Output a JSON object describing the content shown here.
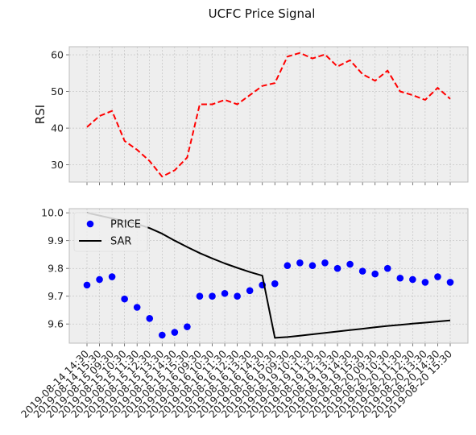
{
  "chart_data": {
    "title": "UCFC Price Signal",
    "x": [
      "2019-08-14 14:30",
      "2019-08-14 15:30",
      "2019-08-15 09:30",
      "2019-08-15 10:30",
      "2019-08-15 11:30",
      "2019-08-15 12:30",
      "2019-08-15 13:30",
      "2019-08-15 14:30",
      "2019-08-15 15:30",
      "2019-08-16 09:30",
      "2019-08-16 10:30",
      "2019-08-16 11:30",
      "2019-08-16 12:30",
      "2019-08-16 13:30",
      "2019-08-16 14:30",
      "2019-08-16 15:30",
      "2019-08-19 09:30",
      "2019-08-19 10:30",
      "2019-08-19 11:30",
      "2019-08-19 12:30",
      "2019-08-19 13:30",
      "2019-08-19 14:30",
      "2019-08-19 15:30",
      "2019-08-20 09:30",
      "2019-08-20 10:30",
      "2019-08-20 11:30",
      "2019-08-20 12:30",
      "2019-08-20 13:30",
      "2019-08-20 14:30",
      "2019-08-20 15:30"
    ],
    "panels": [
      {
        "type": "line",
        "ylabel": "RSI",
        "ylim": [
          25.3,
          62.2
        ],
        "yticks": [
          30,
          40,
          50,
          60
        ],
        "grid": true,
        "series": [
          {
            "name": "",
            "style": "dashed",
            "color": "#ff0000",
            "values": [
              40.3,
              43.3,
              44.7,
              36.5,
              34.1,
              31.0,
              26.8,
              28.5,
              32.0,
              46.5,
              46.5,
              47.7,
              46.5,
              49.0,
              51.5,
              52.3,
              59.5,
              60.5,
              59.0,
              60.1,
              56.8,
              58.5,
              54.7,
              52.9,
              55.7,
              50.0,
              49.0,
              47.7,
              51.0,
              48.0
            ]
          }
        ]
      },
      {
        "type": "line",
        "ylabel": "",
        "ylim": [
          9.531,
          10.015
        ],
        "yticks": [
          9.6,
          9.7,
          9.8,
          9.9,
          10.0
        ],
        "grid": true,
        "legend": "top-left",
        "series": [
          {
            "name": "PRICE",
            "style": "markers",
            "color": "#0000ff",
            "values": [
              9.74,
              9.76,
              9.77,
              9.69,
              9.66,
              9.62,
              9.56,
              9.57,
              9.59,
              9.7,
              9.7,
              9.71,
              9.7,
              9.72,
              9.74,
              9.745,
              9.81,
              9.82,
              9.81,
              9.82,
              9.8,
              9.815,
              9.79,
              9.78,
              9.8,
              9.765,
              9.76,
              9.75,
              9.77,
              9.75
            ]
          },
          {
            "name": "SAR",
            "style": "solid",
            "color": "#000000",
            "values": [
              10.0,
              9.99,
              9.98,
              9.97,
              9.96,
              9.945,
              9.925,
              9.9,
              9.877,
              9.855,
              9.836,
              9.818,
              9.802,
              9.787,
              9.774,
              9.55,
              9.553,
              9.558,
              9.563,
              9.568,
              9.573,
              9.578,
              9.583,
              9.588,
              9.593,
              9.597,
              9.601,
              9.605,
              9.609,
              9.613
            ]
          }
        ]
      }
    ]
  }
}
